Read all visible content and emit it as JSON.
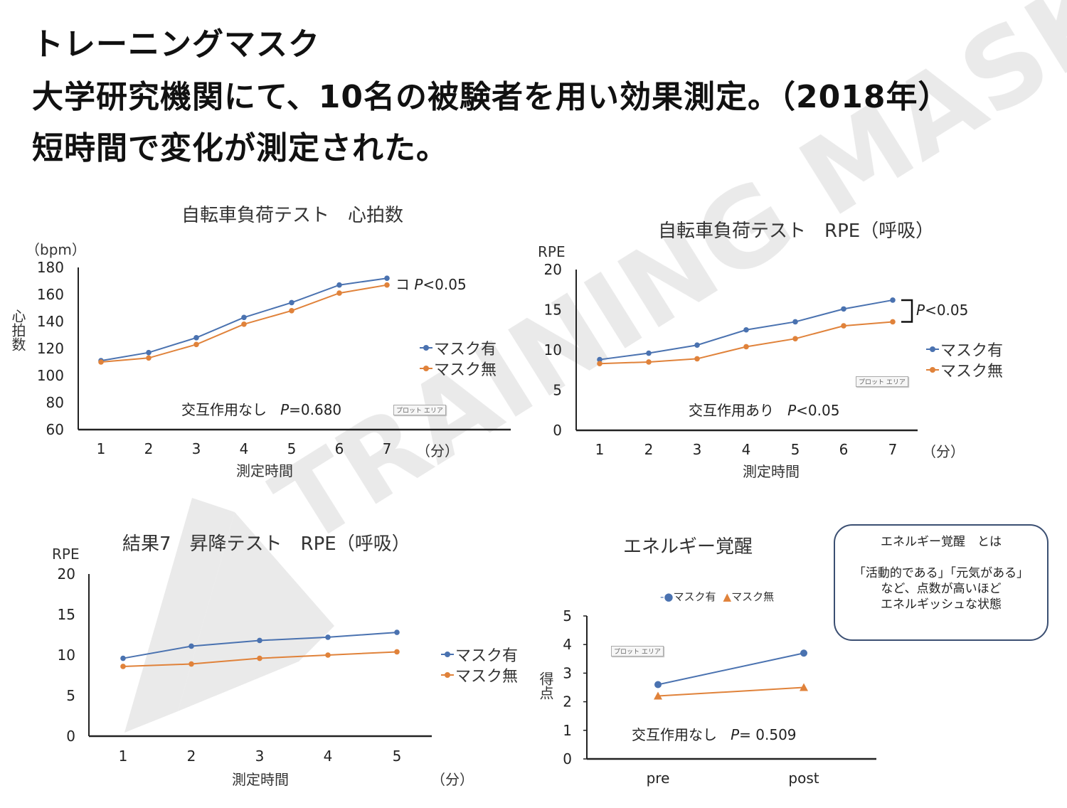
{
  "header": {
    "line1": "トレーニングマスク",
    "line2": "大学研究機関にて、10名の被験者を用い効果測定。（2018年）",
    "line3": "短時間で変化が測定された。"
  },
  "watermark": "TRAINING MASK",
  "colors": {
    "mask_on": "#4a72b0",
    "mask_off": "#e0823a",
    "axis": "#222222",
    "box_border": "#3b4f72"
  },
  "tooltip_label": "プロット エリア",
  "info_box": {
    "title": "エネルギー覚醒　とは",
    "line1": "「活動的である」「元気がある」",
    "line2": "など、点数が高いほど",
    "line3": "エネルギッシュな状態"
  },
  "chart_data": [
    {
      "type": "line",
      "title": "自転車負荷テスト　心拍数",
      "ylabel": "心拍数",
      "yunit": "（bpm）",
      "xlabel": "測定時間",
      "xunit": "（分）",
      "categories": [
        "1",
        "2",
        "3",
        "4",
        "5",
        "6",
        "7"
      ],
      "ylim": [
        60,
        180
      ],
      "yticks": [
        60,
        80,
        100,
        120,
        140,
        160,
        180
      ],
      "series": [
        {
          "name": "マスク有",
          "marker": "circle",
          "values": [
            111,
            117,
            128,
            143,
            154,
            167,
            172
          ]
        },
        {
          "name": "マスク無",
          "marker": "circle",
          "values": [
            110,
            113,
            123,
            138,
            148,
            161,
            167
          ]
        }
      ],
      "legend": "right",
      "annotations": {
        "significance_mark": "コ",
        "significance": "<0.05",
        "interaction": "交互作用なし",
        "interaction_p": "=0.680",
        "p": "P"
      }
    },
    {
      "type": "line",
      "title": "自転車負荷テスト　RPE（呼吸）",
      "ylabel": "RPE",
      "xlabel": "測定時間",
      "xunit": "（分）",
      "categories": [
        "1",
        "2",
        "3",
        "4",
        "5",
        "6",
        "7"
      ],
      "ylim": [
        0,
        20
      ],
      "yticks": [
        0,
        5,
        10,
        15,
        20
      ],
      "series": [
        {
          "name": "マスク有",
          "marker": "circle",
          "values": [
            8.8,
            9.6,
            10.6,
            12.5,
            13.5,
            15.1,
            16.2
          ]
        },
        {
          "name": "マスク無",
          "marker": "circle",
          "values": [
            8.3,
            8.5,
            8.9,
            10.4,
            11.4,
            13.0,
            13.5
          ]
        }
      ],
      "legend": "right",
      "annotations": {
        "significance": "<0.05",
        "interaction": "交互作用あり",
        "interaction_p": "<0.05",
        "p": "P"
      }
    },
    {
      "type": "line",
      "title": "結果7　昇降テスト　RPE（呼吸）",
      "ylabel": "RPE",
      "xlabel": "測定時間",
      "xunit": "（分）",
      "categories": [
        "1",
        "2",
        "3",
        "4",
        "5"
      ],
      "ylim": [
        0,
        20
      ],
      "yticks": [
        0,
        5,
        10,
        15,
        20
      ],
      "series": [
        {
          "name": "マスク有",
          "marker": "circle",
          "values": [
            9.6,
            11.1,
            11.8,
            12.2,
            12.8
          ]
        },
        {
          "name": "マスク無",
          "marker": "circle",
          "values": [
            8.6,
            8.9,
            9.6,
            10.0,
            10.4
          ]
        }
      ],
      "legend": "right"
    },
    {
      "type": "line",
      "title": "エネルギー覚醒",
      "ylabel": "得点",
      "categories": [
        "pre",
        "post"
      ],
      "ylim": [
        0,
        5
      ],
      "yticks": [
        0,
        1,
        2,
        3,
        4,
        5
      ],
      "series": [
        {
          "name": "マスク有",
          "marker": "circle",
          "values": [
            2.6,
            3.7
          ]
        },
        {
          "name": "マスク無",
          "marker": "triangle",
          "values": [
            2.2,
            2.5
          ]
        }
      ],
      "legend": "top",
      "annotations": {
        "interaction": "交互作用なし",
        "interaction_p": "= 0.509",
        "p": "P"
      }
    }
  ]
}
